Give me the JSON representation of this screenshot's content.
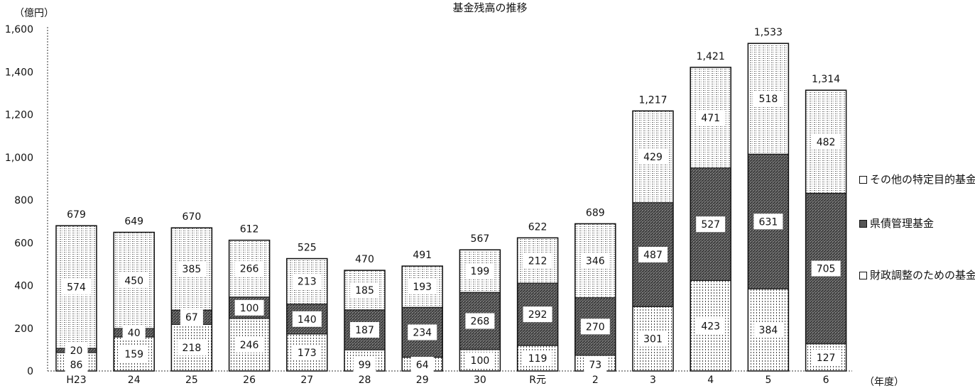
{
  "chart_data": {
    "type": "bar",
    "stacked": true,
    "title": "基金残高の推移",
    "ylabel": "（億円）",
    "xlabel": "（年度）",
    "ylim": [
      0,
      1600
    ],
    "yticks": [
      "0",
      "200",
      "400",
      "600",
      "800",
      "1,000",
      "1,200",
      "1,400",
      "1,600"
    ],
    "categories": [
      "H23",
      "24",
      "25",
      "26",
      "27",
      "28",
      "29",
      "30",
      "R元",
      "2",
      "3",
      "4",
      "5",
      "6"
    ],
    "series": [
      {
        "name": "財政調整のための基金",
        "key": "fiscal",
        "values": [
          86,
          159,
          218,
          246,
          173,
          99,
          64,
          100,
          119,
          73,
          301,
          423,
          384,
          127
        ]
      },
      {
        "name": "県債管理基金",
        "key": "pref",
        "values": [
          20,
          40,
          67,
          100,
          140,
          187,
          234,
          268,
          292,
          270,
          487,
          527,
          631,
          705
        ]
      },
      {
        "name": "その他の特定目的基金",
        "key": "other",
        "values": [
          574,
          450,
          385,
          266,
          213,
          185,
          193,
          199,
          212,
          346,
          429,
          471,
          518,
          482
        ]
      }
    ],
    "totals": [
      "679",
      "649",
      "670",
      "612",
      "525",
      "470",
      "491",
      "567",
      "622",
      "689",
      "1,217",
      "1,421",
      "1,533",
      "1,314"
    ],
    "legend_position": "right",
    "grid": false
  },
  "legend": [
    {
      "key": "other",
      "label": "その他の特定目的基金"
    },
    {
      "key": "pref",
      "label": "県債管理基金"
    },
    {
      "key": "fiscal",
      "label": "財政調整のための基金"
    }
  ],
  "colors": {
    "fiscal_fill": "#ffffff",
    "pref_fill": "#555555",
    "other_fill": "#ffffff",
    "outline": "#111111"
  }
}
